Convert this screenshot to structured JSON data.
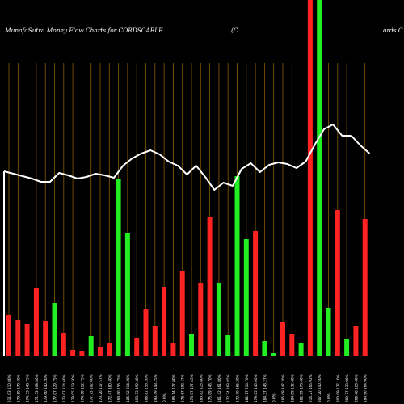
{
  "chart_data": {
    "type": "bar",
    "title_left": "MunafaSutra  Money Flow  Charts for CORDSCABLE",
    "title_mid": "(C",
    "title_right": "ords C",
    "colors": {
      "background": "#000000",
      "up": "#22ee22",
      "down": "#ff2222",
      "grid": "#8a5a00",
      "line": "#ffffff"
    },
    "grid": true,
    "ylim": [
      0,
      440
    ],
    "bars": [
      {
        "value": 50,
        "dir": "down"
      },
      {
        "value": 44,
        "dir": "down"
      },
      {
        "value": 39,
        "dir": "down"
      },
      {
        "value": 83,
        "dir": "down"
      },
      {
        "value": 43,
        "dir": "down"
      },
      {
        "value": 65,
        "dir": "up"
      },
      {
        "value": 28,
        "dir": "down"
      },
      {
        "value": 7,
        "dir": "down"
      },
      {
        "value": 6,
        "dir": "down"
      },
      {
        "value": 24,
        "dir": "up"
      },
      {
        "value": 10,
        "dir": "down"
      },
      {
        "value": 15,
        "dir": "down"
      },
      {
        "value": 218,
        "dir": "up"
      },
      {
        "value": 152,
        "dir": "up"
      },
      {
        "value": 22,
        "dir": "down"
      },
      {
        "value": 58,
        "dir": "down"
      },
      {
        "value": 37,
        "dir": "down"
      },
      {
        "value": 85,
        "dir": "down"
      },
      {
        "value": 16,
        "dir": "down"
      },
      {
        "value": 105,
        "dir": "down"
      },
      {
        "value": 27,
        "dir": "up"
      },
      {
        "value": 90,
        "dir": "down"
      },
      {
        "value": 172,
        "dir": "down"
      },
      {
        "value": 90,
        "dir": "up"
      },
      {
        "value": 26,
        "dir": "up"
      },
      {
        "value": 222,
        "dir": "up"
      },
      {
        "value": 144,
        "dir": "up"
      },
      {
        "value": 154,
        "dir": "down"
      },
      {
        "value": 18,
        "dir": "up"
      },
      {
        "value": 3,
        "dir": "up"
      },
      {
        "value": 41,
        "dir": "down"
      },
      {
        "value": 27,
        "dir": "down"
      },
      {
        "value": 16,
        "dir": "up"
      },
      {
        "value": 440,
        "dir": "down"
      },
      {
        "value": 440,
        "dir": "up"
      },
      {
        "value": 59,
        "dir": "up"
      },
      {
        "value": 180,
        "dir": "down"
      },
      {
        "value": 20,
        "dir": "up"
      },
      {
        "value": 36,
        "dir": "down"
      },
      {
        "value": 169,
        "dir": "down"
      }
    ],
    "line": [
      212,
      215,
      218,
      221,
      225,
      225,
      214,
      217,
      221,
      219,
      215,
      217,
      220,
      205,
      196,
      190,
      186,
      191,
      200,
      205,
      216,
      205,
      219,
      235,
      226,
      230,
      209,
      202,
      213,
      204,
      201,
      203,
      208,
      200,
      179,
      160,
      154,
      168,
      168,
      180,
      190
    ],
    "categories": [
      "211.03 110.80%",
      "179.50 179.40%",
      "174.33 143.75%",
      "171.53 168.80%",
      "179.60 140.20%",
      "177.07 129.75%",
      "173.07 114.60%",
      "179.05 119.50%",
      "174.60 112.75%",
      "177.75 102.60%",
      "173.20 117.57%",
      "172.47 180.40%",
      "189.80 156.75%",
      "186.92 214.20%",
      "193.73 192.40%",
      "188.81 153.20%",
      "193.49 143.25%",
      "0 0%",
      "188.14 127.80%",
      "178.67 192.47%",
      "176.67 177.45%",
      "183.82 126.80%",
      "175.09 146.70%",
      "161.42 161.80%",
      "172.24 163.85%",
      "172.70 166.20%",
      "182.77 214.70%",
      "179.05 145.00%",
      "184.37 143.27%",
      "0 0%",
      "185.09 147.20%",
      "184.09 132.40%",
      "182.99 173.40%",
      "216.27 166.92%",
      "207.20 140.50%",
      "0 0%",
      "200.09 177.10%",
      "209.77 133.00%",
      "209.48 120.40%",
      "184.60 164.90%"
    ]
  }
}
